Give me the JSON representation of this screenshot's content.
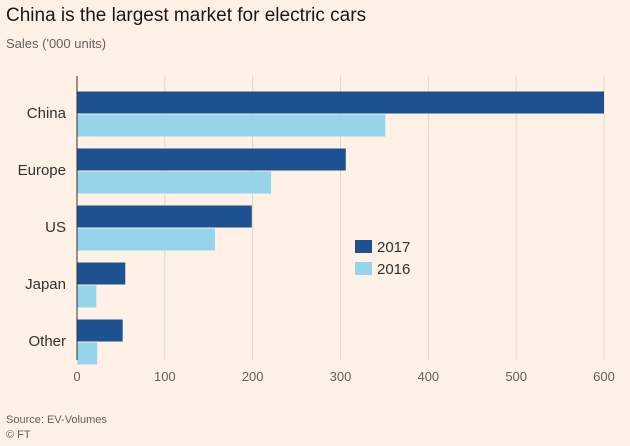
{
  "header": {
    "title": "China is the largest market for electric cars",
    "subtitle": "Sales ('000 units)"
  },
  "footer": {
    "source": "Source: EV-Volumes",
    "credit": "© FT"
  },
  "chart_data": {
    "type": "bar",
    "orientation": "horizontal",
    "title": "China is the largest market for electric cars",
    "subtitle": "Sales ('000 units)",
    "categories": [
      "China",
      "Europe",
      "US",
      "Japan",
      "Other"
    ],
    "series": [
      {
        "name": "2017",
        "values": [
          600,
          306,
          199,
          55,
          52
        ],
        "color": "#1e5190"
      },
      {
        "name": "2016",
        "values": [
          351,
          221,
          157,
          22,
          23
        ],
        "color": "#96d4e9"
      }
    ],
    "xlim": [
      0,
      600
    ],
    "xticks": [
      0,
      100,
      200,
      300,
      400,
      500,
      600
    ],
    "grid": true,
    "legend": "center-right"
  }
}
